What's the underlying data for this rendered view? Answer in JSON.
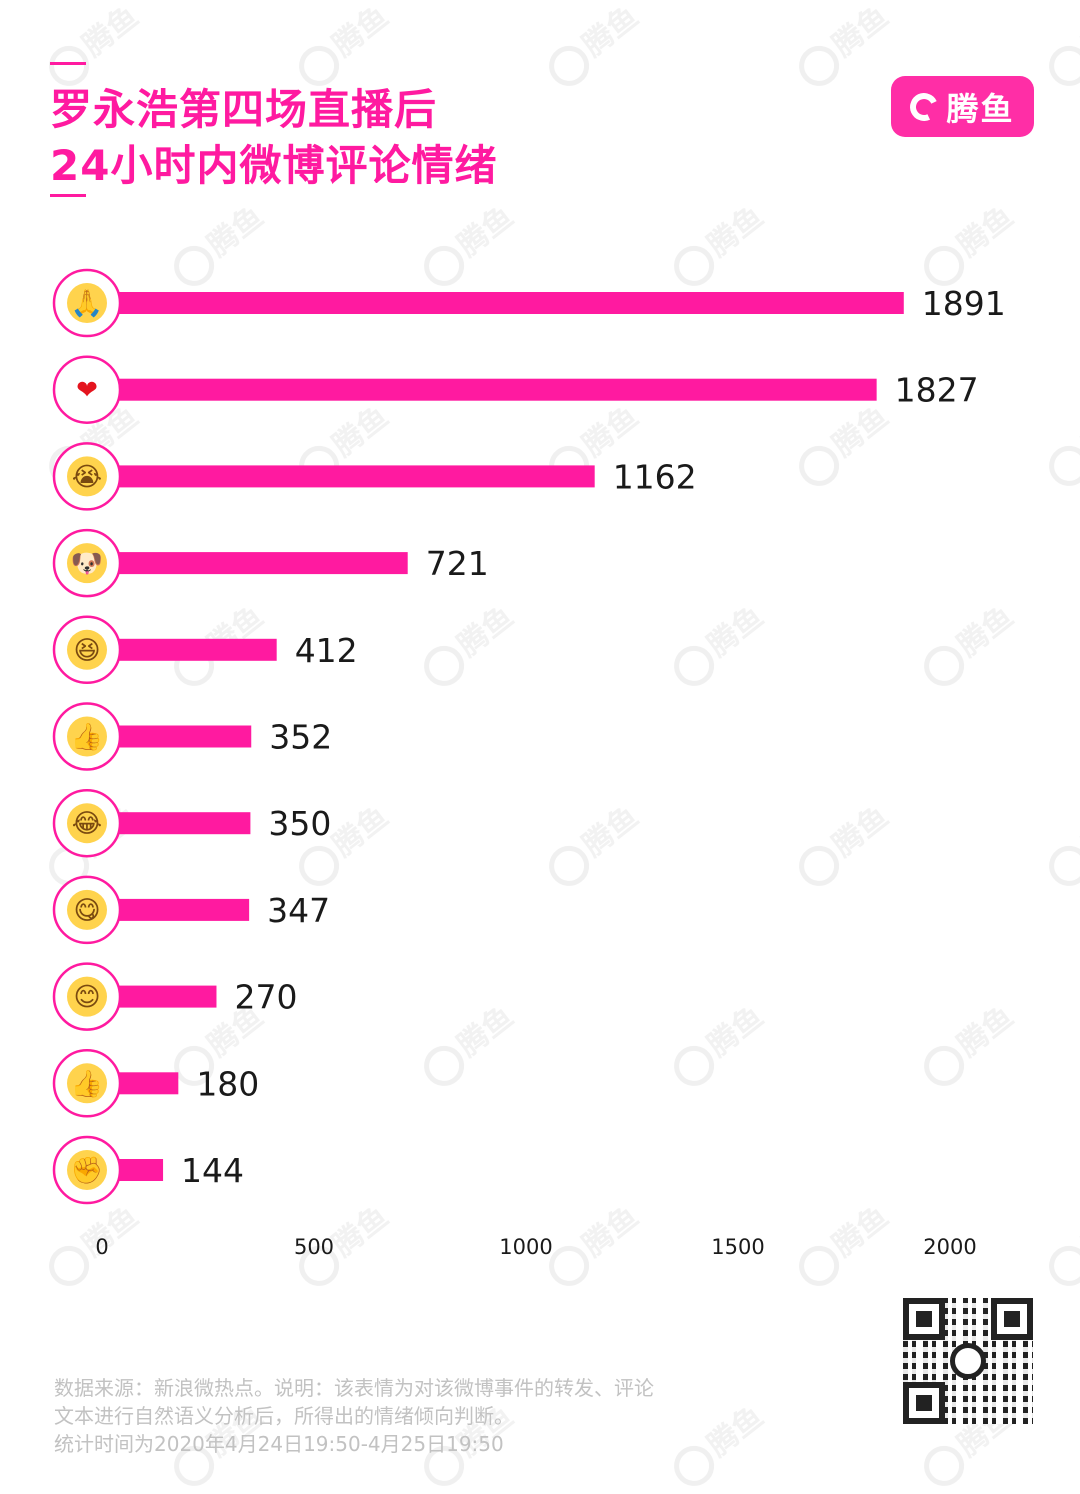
{
  "header": {
    "title_line1": "罗永浩第四场直播后",
    "title_line2": "24小时内微博评论情绪"
  },
  "logo": {
    "text": "腾鱼",
    "icon": "fish-swirl-logo-icon"
  },
  "watermark": "腾鱼",
  "colors": {
    "accent": "#ff1aa0",
    "bar": "#ff1aa0",
    "text": "#1a1a1a",
    "footnote": "#c2c2c2"
  },
  "chart_data": {
    "type": "bar",
    "orientation": "horizontal",
    "categories": [
      "合十",
      "心",
      "笑哭",
      "doge",
      "哈哈",
      "赞",
      "笑cry",
      "馋嘴",
      "微笑",
      "好",
      "加油"
    ],
    "icons": [
      "pray-hands-emoji",
      "red-heart-emoji",
      "laugh-cry-emoji",
      "doge-emoji",
      "laughing-face-emoji",
      "thumbs-up-emoji",
      "tears-of-joy-emoji",
      "yum-face-emoji",
      "smiling-face-emoji",
      "ok-thumb-emoji",
      "fist-emoji"
    ],
    "values": [
      1891,
      1827,
      1162,
      721,
      412,
      352,
      350,
      347,
      270,
      180,
      144
    ],
    "value_labels": [
      "1891",
      "1827",
      "1162",
      "721",
      "412",
      "352",
      "350",
      "347",
      "270",
      "180",
      "144"
    ],
    "xlim": [
      0,
      2000
    ],
    "xticks": [
      0,
      500,
      1000,
      1500,
      2000
    ],
    "xtick_labels": [
      "0",
      "500",
      "1000",
      "1500",
      "2000"
    ],
    "grid": false,
    "legend": "none"
  },
  "footer": {
    "line1": "数据来源：新浪微热点。说明：该表情为对该微博事件的转发、评论",
    "line2": "文本进行自然语义分析后，所得出的情绪倾向判断。",
    "line3": "统计时间为2020年4月24日19:50-4月25日19:50",
    "qr_icon": "qr-code-icon"
  }
}
